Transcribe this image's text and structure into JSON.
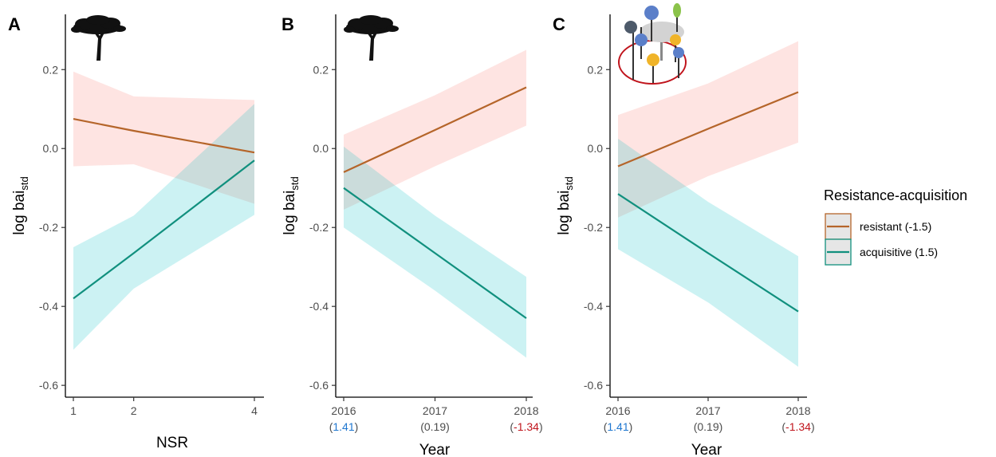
{
  "colors": {
    "resistant_line": "#B5652A",
    "resistant_band": "#F8766D",
    "acquisitive_line": "#11907E",
    "acquisitive_band": "#00BFC4",
    "positive_value": "#1f77d0",
    "negative_value": "#c0141c"
  },
  "legend": {
    "title": "Resistance-acquisition",
    "placement": "right",
    "entries": [
      {
        "label": "resistant (-1.5)",
        "series": "resistant"
      },
      {
        "label": "acquisitive (1.5)",
        "series": "acquisitive"
      }
    ]
  },
  "icons": {
    "A": "tree-silhouette-icon",
    "B": "tree-silhouette-icon",
    "C": "tree-community-icon"
  },
  "chart_data": [
    {
      "panel": "A",
      "type": "line",
      "xlabel": "NSR",
      "ylabel": "log bai",
      "ylabel_sub": "std",
      "xlim": [
        1,
        4
      ],
      "ylim": [
        -0.63,
        0.34
      ],
      "x_ticks": [
        1,
        2,
        4
      ],
      "x_tick_labels": [
        "1",
        "2",
        "4"
      ],
      "x_tick_sublabels": [],
      "y_ticks": [
        -0.6,
        -0.4,
        -0.2,
        0.0,
        0.2
      ],
      "y_tick_labels": [
        "-0.6",
        "-0.4",
        "-0.2",
        "0.0",
        "0.2"
      ],
      "grid": false,
      "series": [
        {
          "name": "resistant (-1.5)",
          "key": "resistant",
          "x": [
            1,
            2,
            4
          ],
          "y": [
            0.075,
            0.045,
            -0.01
          ],
          "lower": [
            -0.045,
            -0.04,
            -0.14
          ],
          "upper": [
            0.195,
            0.132,
            0.123
          ]
        },
        {
          "name": "acquisitive (1.5)",
          "key": "acquisitive",
          "x": [
            1,
            2,
            4
          ],
          "y": [
            -0.38,
            -0.265,
            -0.03
          ],
          "lower": [
            -0.51,
            -0.355,
            -0.168
          ],
          "upper": [
            -0.25,
            -0.17,
            0.113
          ]
        }
      ]
    },
    {
      "panel": "B",
      "type": "line",
      "xlabel": "Year",
      "ylabel": "log bai",
      "ylabel_sub": "std",
      "xlim": [
        2016,
        2018
      ],
      "ylim": [
        -0.63,
        0.34
      ],
      "x_ticks": [
        2016,
        2017,
        2018
      ],
      "x_tick_labels": [
        "2016",
        "2017",
        "2018"
      ],
      "x_tick_sublabels": [
        {
          "pre": "(",
          "value": "1.41",
          "post": ")",
          "tone": "positive"
        },
        {
          "pre": "(",
          "value": "0.19",
          "post": ")",
          "tone": "neutral"
        },
        {
          "pre": "(",
          "value": "-1.34",
          "post": ")",
          "tone": "negative"
        }
      ],
      "y_ticks": [
        -0.6,
        -0.4,
        -0.2,
        0.0,
        0.2
      ],
      "y_tick_labels": [
        "-0.6",
        "-0.4",
        "-0.2",
        "0.0",
        "0.2"
      ],
      "grid": false,
      "series": [
        {
          "name": "resistant (-1.5)",
          "key": "resistant",
          "x": [
            2016,
            2017,
            2018
          ],
          "y": [
            -0.06,
            0.047,
            0.155
          ],
          "lower": [
            -0.155,
            -0.045,
            0.058
          ],
          "upper": [
            0.035,
            0.135,
            0.25
          ]
        },
        {
          "name": "acquisitive (1.5)",
          "key": "acquisitive",
          "x": [
            2016,
            2017,
            2018
          ],
          "y": [
            -0.1,
            -0.265,
            -0.43
          ],
          "lower": [
            -0.2,
            -0.36,
            -0.53
          ],
          "upper": [
            0.005,
            -0.17,
            -0.325
          ]
        }
      ]
    },
    {
      "panel": "C",
      "type": "line",
      "xlabel": "Year",
      "ylabel": "log bai",
      "ylabel_sub": "std",
      "xlim": [
        2016,
        2018
      ],
      "ylim": [
        -0.63,
        0.34
      ],
      "x_ticks": [
        2016,
        2017,
        2018
      ],
      "x_tick_labels": [
        "2016",
        "2017",
        "2018"
      ],
      "x_tick_sublabels": [
        {
          "pre": "(",
          "value": "1.41",
          "post": ")",
          "tone": "positive"
        },
        {
          "pre": "(",
          "value": "0.19",
          "post": ")",
          "tone": "neutral"
        },
        {
          "pre": "(",
          "value": "-1.34",
          "post": ")",
          "tone": "negative"
        }
      ],
      "y_ticks": [
        -0.6,
        -0.4,
        -0.2,
        0.0,
        0.2
      ],
      "y_tick_labels": [
        "-0.6",
        "-0.4",
        "-0.2",
        "0.0",
        "0.2"
      ],
      "grid": false,
      "series": [
        {
          "name": "resistant (-1.5)",
          "key": "resistant",
          "x": [
            2016,
            2017,
            2018
          ],
          "y": [
            -0.045,
            0.05,
            0.143
          ],
          "lower": [
            -0.175,
            -0.07,
            0.015
          ],
          "upper": [
            0.085,
            0.165,
            0.272
          ]
        },
        {
          "name": "acquisitive (1.5)",
          "key": "acquisitive",
          "x": [
            2016,
            2017,
            2018
          ],
          "y": [
            -0.115,
            -0.265,
            -0.413
          ],
          "lower": [
            -0.255,
            -0.39,
            -0.553
          ],
          "upper": [
            0.025,
            -0.135,
            -0.273
          ]
        }
      ]
    }
  ]
}
